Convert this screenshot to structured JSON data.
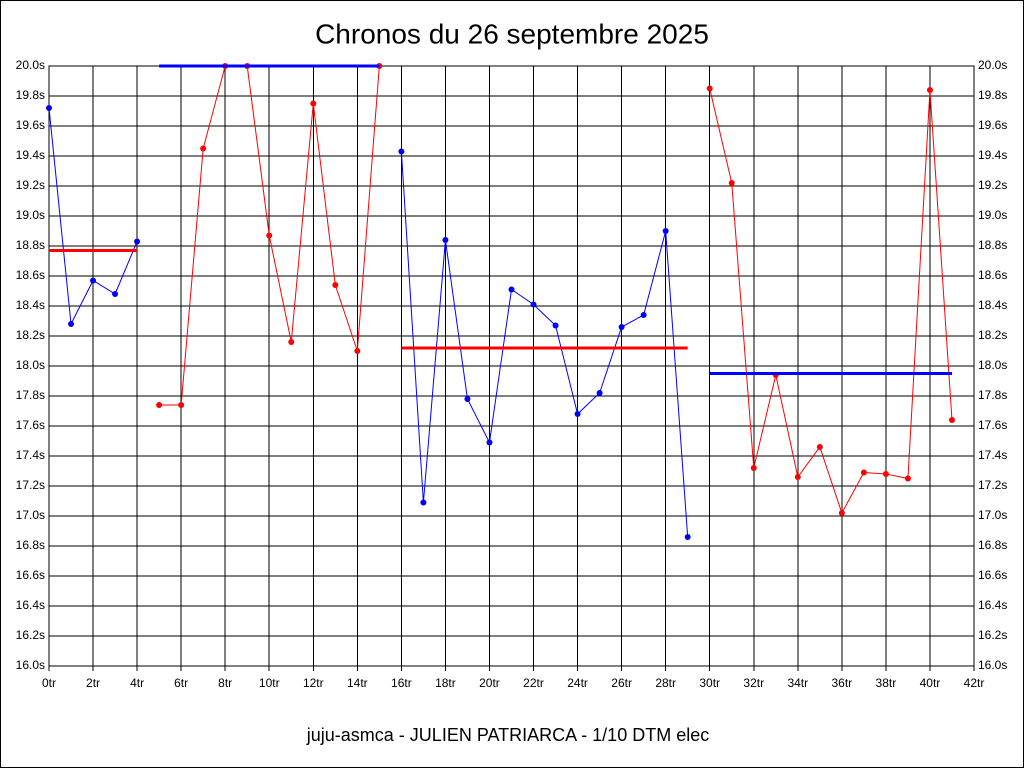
{
  "chart_data": {
    "type": "line",
    "title": "Chronos du 26 septembre 2025",
    "footer": "juju-asmca - JULIEN PATRIARCA - 1/10 DTM elec",
    "xlim": [
      0,
      42
    ],
    "ylim": [
      16,
      20
    ],
    "grid": true,
    "xticks": [
      {
        "value": 0,
        "label": "0tr"
      },
      {
        "value": 2,
        "label": "2tr"
      },
      {
        "value": 4,
        "label": "4tr"
      },
      {
        "value": 6,
        "label": "6tr"
      },
      {
        "value": 8,
        "label": "8tr"
      },
      {
        "value": 10,
        "label": "10tr"
      },
      {
        "value": 12,
        "label": "12tr"
      },
      {
        "value": 14,
        "label": "14tr"
      },
      {
        "value": 16,
        "label": "16tr"
      },
      {
        "value": 18,
        "label": "18tr"
      },
      {
        "value": 20,
        "label": "20tr"
      },
      {
        "value": 22,
        "label": "22tr"
      },
      {
        "value": 24,
        "label": "24tr"
      },
      {
        "value": 26,
        "label": "26tr"
      },
      {
        "value": 28,
        "label": "28tr"
      },
      {
        "value": 30,
        "label": "30tr"
      },
      {
        "value": 32,
        "label": "32tr"
      },
      {
        "value": 34,
        "label": "34tr"
      },
      {
        "value": 36,
        "label": "36tr"
      },
      {
        "value": 38,
        "label": "38tr"
      },
      {
        "value": 40,
        "label": "40tr"
      },
      {
        "value": 42,
        "label": "42tr"
      }
    ],
    "yticks": [
      {
        "value": 16.0,
        "label": "16.0s"
      },
      {
        "value": 16.2,
        "label": "16.2s"
      },
      {
        "value": 16.4,
        "label": "16.4s"
      },
      {
        "value": 16.6,
        "label": "16.6s"
      },
      {
        "value": 16.8,
        "label": "16.8s"
      },
      {
        "value": 17.0,
        "label": "17.0s"
      },
      {
        "value": 17.2,
        "label": "17.2s"
      },
      {
        "value": 17.4,
        "label": "17.4s"
      },
      {
        "value": 17.6,
        "label": "17.6s"
      },
      {
        "value": 17.8,
        "label": "17.8s"
      },
      {
        "value": 18.0,
        "label": "18.0s"
      },
      {
        "value": 18.2,
        "label": "18.2s"
      },
      {
        "value": 18.4,
        "label": "18.4s"
      },
      {
        "value": 18.6,
        "label": "18.6s"
      },
      {
        "value": 18.8,
        "label": "18.8s"
      },
      {
        "value": 19.0,
        "label": "19.0s"
      },
      {
        "value": 19.2,
        "label": "19.2s"
      },
      {
        "value": 19.4,
        "label": "19.4s"
      },
      {
        "value": 19.6,
        "label": "19.6s"
      },
      {
        "value": 19.8,
        "label": "19.8s"
      },
      {
        "value": 20.0,
        "label": "20.0s"
      }
    ],
    "series": [
      {
        "color": "#0000ff",
        "style": "markers",
        "x": [
          0,
          1,
          2,
          3,
          4
        ],
        "values": [
          19.72,
          18.28,
          18.57,
          18.48,
          18.83
        ]
      },
      {
        "color": "#ff0000",
        "style": "mean",
        "x": [
          0,
          4
        ],
        "values": [
          18.77,
          18.77
        ]
      },
      {
        "color": "#ff0000",
        "style": "markers",
        "x": [
          5,
          6,
          7,
          8,
          9,
          10,
          11,
          12,
          13,
          14,
          15
        ],
        "values": [
          17.74,
          17.74,
          19.45,
          20.0,
          20.0,
          18.87,
          18.16,
          19.75,
          18.54,
          18.1,
          20.0
        ]
      },
      {
        "color": "#0000ff",
        "style": "mean",
        "x": [
          5,
          15
        ],
        "values": [
          20.0,
          20.0
        ]
      },
      {
        "color": "#0000ff",
        "style": "markers",
        "x": [
          16,
          17,
          18,
          19,
          20,
          21,
          22,
          23,
          24,
          25,
          26,
          27,
          28,
          29
        ],
        "values": [
          19.43,
          17.09,
          18.84,
          17.78,
          17.49,
          18.51,
          18.41,
          18.27,
          17.68,
          17.82,
          18.26,
          18.34,
          18.9,
          16.86
        ]
      },
      {
        "color": "#ff0000",
        "style": "mean",
        "x": [
          16,
          29
        ],
        "values": [
          18.12,
          18.12
        ]
      },
      {
        "color": "#ff0000",
        "style": "markers",
        "x": [
          30,
          31,
          32,
          33,
          34,
          35,
          36,
          37,
          38,
          39,
          40,
          41
        ],
        "values": [
          19.85,
          19.22,
          17.32,
          17.94,
          17.26,
          17.46,
          17.02,
          17.29,
          17.28,
          17.25,
          19.84,
          17.64
        ]
      },
      {
        "color": "#0000ff",
        "style": "mean",
        "x": [
          30,
          41
        ],
        "values": [
          17.95,
          17.95
        ]
      }
    ]
  }
}
